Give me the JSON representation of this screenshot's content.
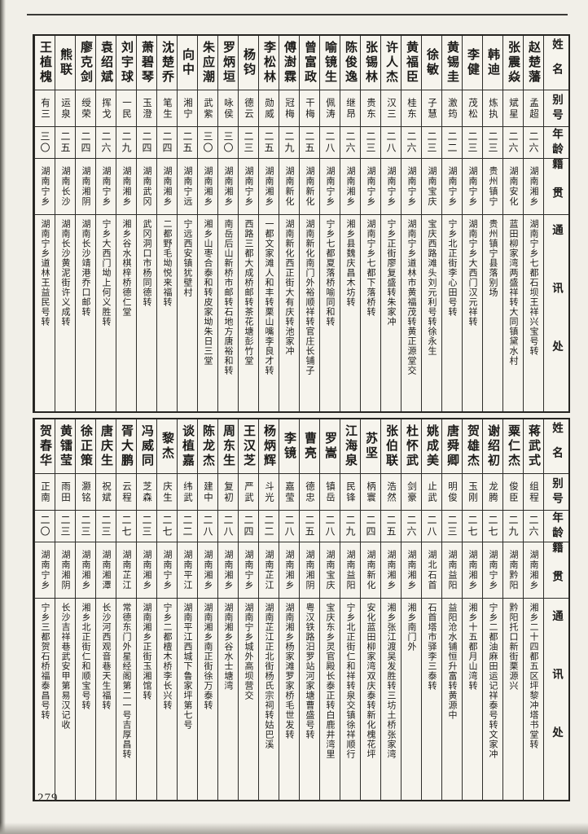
{
  "page": {
    "number": "279",
    "headers": [
      "姓名",
      "别号",
      "年龄",
      "籍贯",
      "通讯处"
    ]
  },
  "tables": [
    {
      "entries": [
        {
          "name": "赵楚藩",
          "hao": "孟超",
          "age": "二六",
          "native": "湖南湘乡",
          "address": "湖南宁乡七都石坝王祥兴宝号转"
        },
        {
          "name": "张震焱",
          "hao": "斌星",
          "age": "二六",
          "native": "湖南安化",
          "address": "蓝田柳家湾两盛祥转大同镇黛水村"
        },
        {
          "name": "韩迪",
          "hao": "炼执",
          "age": "二三",
          "native": "贵州镇宁",
          "address": "贵州镇宁县落别场"
        },
        {
          "name": "李健",
          "hao": "茂松",
          "age": "二三",
          "native": "湖南宁乡",
          "address": "湖南宁乡大西门汉元祥转"
        },
        {
          "name": "黄锡圭",
          "hao": "激筠",
          "age": "二二",
          "native": "湖南宁乡",
          "address": "宁乡北正街李心田号转"
        },
        {
          "name": "徐敏",
          "hao": "子慧",
          "age": "二三",
          "native": "湖南宝庆",
          "address": "宝庆西路滩头刘元利号转徐永生"
        },
        {
          "name": "黄福臣",
          "hao": "桂东",
          "age": "二六",
          "native": "湖南宁乡",
          "address": "湖南宁乡道林市黄福茂转黄正源堂交"
        },
        {
          "name": "许人杰",
          "hao": "汉三",
          "age": "二八",
          "native": "湖南宁乡",
          "address": "宁乡正街廖复盛转朱家冲"
        },
        {
          "name": "张锡林",
          "hao": "贵东",
          "age": "二三",
          "native": "湖南宁乡",
          "address": "湖南宁乡七都下落桥转"
        },
        {
          "name": "陈俊逸",
          "hao": "继昂",
          "age": "二六",
          "native": "湖南湘乡",
          "address": "湘乡县魏庆昌木坊转"
        },
        {
          "name": "喻镜生",
          "hao": "佩涛",
          "age": "二八",
          "native": "湖南宁乡",
          "address": "宁乡七都夏落桥喻同和转"
        },
        {
          "name": "曾富政",
          "hao": "干梅",
          "age": "二五",
          "native": "湖南新化",
          "address": "湖南新化南门外裕顺祥转官庄长铺子"
        },
        {
          "name": "傅澍霖",
          "hao": "冠梅",
          "age": "二九",
          "native": "湖南新化",
          "address": "湖南新化西正街大有庆转池家冲"
        },
        {
          "name": "李松林",
          "hao": "勋威",
          "age": "二五",
          "native": "湖南湘乡",
          "address": "一都文家滩人和丰转栗山嘴李良才转"
        },
        {
          "name": "杨钧",
          "hao": "德云",
          "age": "二三",
          "native": "湖南宁乡",
          "address": "西路三都大成桥邮转茶花塘彭竹堂"
        },
        {
          "name": "罗炳垣",
          "hao": "咏侯",
          "age": "三〇",
          "native": "湖南湘乡",
          "address": "南岳后山新桥市邮转石地方唐裕和转"
        },
        {
          "name": "朱应潮",
          "hao": "武紫",
          "age": "三〇",
          "native": "湖南湘乡",
          "address": "湘乡山枣合泰和转皮家坳朱日三堂"
        },
        {
          "name": "向中",
          "hao": "湘宁",
          "age": "二五",
          "native": "湖南宁远",
          "address": "宁远西安镇犹壁村"
        },
        {
          "name": "沈楚乔",
          "hao": "笔生",
          "age": "二四",
          "native": "湖南湘乡",
          "address": "二都野毛坳悦来福转"
        },
        {
          "name": "萧碧琴",
          "hao": "玉澄",
          "age": "二四",
          "native": "湖南武冈",
          "address": "武冈洞口市杨同德转"
        },
        {
          "name": "刘宇球",
          "hao": "一民",
          "age": "二九",
          "native": "湖南湘乡",
          "address": "湘乡谷水棋梓桥德仁堂"
        },
        {
          "name": "袁绍斌",
          "hao": "挥戈",
          "age": "二六",
          "native": "湖南宁乡",
          "address": "宁乡大西门坳上何义胜转"
        },
        {
          "name": "廖克剑",
          "hao": "绶荣",
          "age": "二四",
          "native": "湖南湘阴",
          "address": "湖南长沙靖港乔口邮转"
        },
        {
          "name": "熊联",
          "hao": "运泉",
          "age": "二五",
          "native": "湖南长沙",
          "address": "湖南长沙黄泥街许义成转"
        },
        {
          "name": "王植槐",
          "hao": "有三",
          "age": "三〇",
          "native": "湖南宁乡",
          "address": "湖南宁乡道林王益民号转"
        }
      ]
    },
    {
      "entries": [
        {
          "name": "蒋武式",
          "hao": "组程",
          "age": "二六",
          "native": "湖南湘乡",
          "address": "湘乡二十四都五区坪黎冲塔书堂转"
        },
        {
          "name": "粟仁杰",
          "hao": "俊臣",
          "age": "二九",
          "native": "湖南黔阳",
          "address": "黔阳托口新街栗源兴"
        },
        {
          "name": "谢绍初",
          "hao": "龙腾",
          "age": "二七",
          "native": "湖南宁乡",
          "address": "宁乡二都油麻田运记祥泰号转文家冲"
        },
        {
          "name": "贺雄杰",
          "hao": "玉刚",
          "age": "二七",
          "native": "湖南湘乡",
          "address": "湘乡十五都月山湾转"
        },
        {
          "name": "唐舜卿",
          "hao": "明俊",
          "age": "二三",
          "native": "湖南益阳",
          "address": "益阳沧水铺恒升富转黄源中"
        },
        {
          "name": "姚成美",
          "hao": "止武",
          "age": "二八",
          "native": "湖北石首",
          "address": "石首塔市驿李三泰转"
        },
        {
          "name": "杜怀武",
          "hao": "剑豪",
          "age": "二六",
          "native": "湖南湘乡",
          "address": "湘乡南门外"
        },
        {
          "name": "张伯联",
          "hao": "浩然",
          "age": "二五",
          "native": "湖南湘乡",
          "address": "湘乡张江渡吴发胜转三坊土桥张家湾"
        },
        {
          "name": "苏坚",
          "hao": "柄寰",
          "age": "二四",
          "native": "湖南新化",
          "address": "安化蓝田柳家湾双庆泰转新化槐花坪"
        },
        {
          "name": "江海泉",
          "hao": "民锋",
          "age": "二九",
          "native": "湖南益阳",
          "address": "宁乡北正街仁和祥转泉交镇徐祥顺行"
        },
        {
          "name": "罗嵩",
          "hao": "镇岳",
          "age": "二八",
          "native": "湖南宝庆",
          "address": "宝庆东乡灵官殿长泰正转白鹿井湾里"
        },
        {
          "name": "曹亮",
          "hao": "德忠",
          "age": "二五",
          "native": "湖南湘阴",
          "address": "粤汉铁路汨罗站河家塘曹盛号转"
        },
        {
          "name": "李镜",
          "hao": "嘉莹",
          "age": "二八",
          "native": "湖南湘乡",
          "address": "湖南湘乡杨家滩罗家桥毛世发转"
        },
        {
          "name": "杨炳辉",
          "hao": "斗光",
          "age": "二二",
          "native": "湖南芷江",
          "address": "湖南芷江正北街杨氏宗祠转姑巴溪"
        },
        {
          "name": "王汉芝",
          "hao": "严武",
          "age": "二四",
          "native": "湖南宁乡",
          "address": "湖南宁乡城外高坝营交"
        },
        {
          "name": "周东生",
          "hao": "复初",
          "age": "二八",
          "native": "湖南湘乡",
          "address": "湖南湘乡谷水士塘湾"
        },
        {
          "name": "陈龙杰",
          "hao": "建中",
          "age": "二八",
          "native": "湖南湘乡",
          "address": "湖南湘乡南正街徐万泰转"
        },
        {
          "name": "谈植嘉",
          "hao": "纬武",
          "age": "二二",
          "native": "湖南平江",
          "address": "湖南平江西城下鲁家坪第七号"
        },
        {
          "name": "黎杰",
          "hao": "庆生",
          "age": "二七",
          "native": "湖南宁乡",
          "address": "宁乡二都檀木桥李长兴转"
        },
        {
          "name": "冯威同",
          "hao": "芝森",
          "age": "二三",
          "native": "湖南湘乡",
          "address": "湖南湘乡正街玉湘馆转"
        },
        {
          "name": "胥大鹏",
          "hao": "云程",
          "age": "二七",
          "native": "湖南芷江",
          "address": "常德东门外星经阁第二一号吉厚昌转"
        },
        {
          "name": "唐庆生",
          "hao": "祝斌",
          "age": "二三",
          "native": "湖南湘潭",
          "address": "长沙河西观音巷天生福转"
        },
        {
          "name": "徐正策",
          "hao": "灏铭",
          "age": "二三",
          "native": "湖南湘乡",
          "address": "湘乡北正街仁和顺宝号转"
        },
        {
          "name": "黄镭莹",
          "hao": "雨田",
          "age": "二三",
          "native": "湖南湘阴",
          "address": "长沙吉祥巷武安甲第易汉记收"
        },
        {
          "name": "贺春华",
          "hao": "正南",
          "age": "二〇",
          "native": "湖南宁乡",
          "address": "宁乡三都贺石桥福泰昌号转"
        }
      ]
    }
  ]
}
